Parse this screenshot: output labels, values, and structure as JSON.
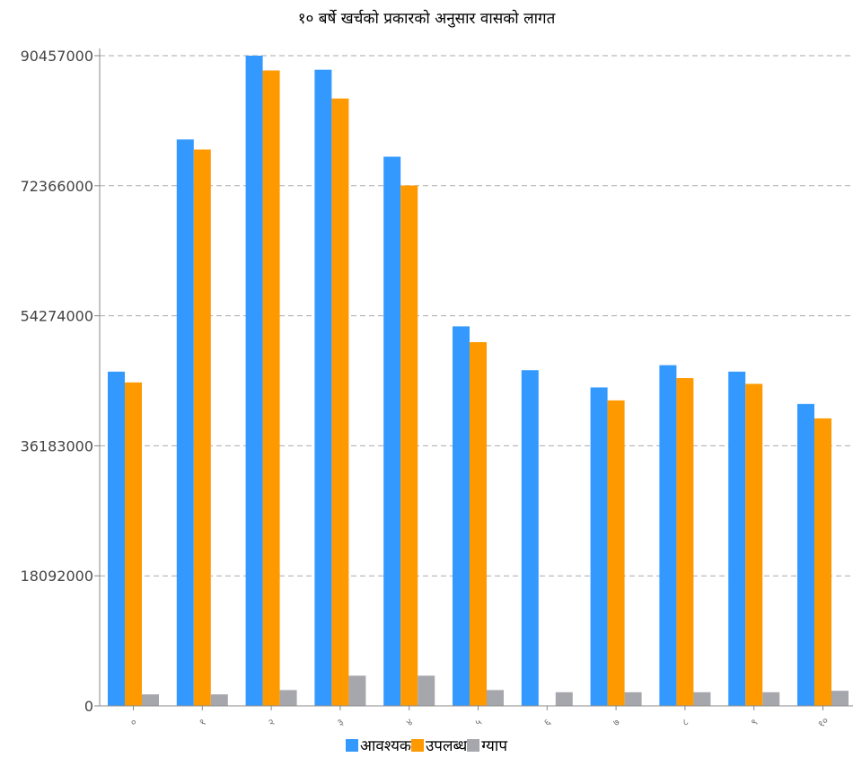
{
  "chart_data": {
    "type": "bar",
    "title": "१० बर्षे खर्चको प्रकारको अनुसार वासको लागत",
    "xlabel": "",
    "ylabel": "",
    "categories": [
      "०",
      "१",
      "२",
      "३",
      "४",
      "५",
      "६",
      "७",
      "८",
      "९",
      "१०"
    ],
    "yticks": [
      "0",
      "18092000",
      "36183000",
      "54274000",
      "72366000",
      "90457000"
    ],
    "ylim": [
      0,
      90457000
    ],
    "grid": true,
    "legend_position": "bottom",
    "series": [
      {
        "name": "आवश्यक",
        "color": "#3399ff",
        "values": [
          46500000,
          78800000,
          90457000,
          88500000,
          76400000,
          52800000,
          46700000,
          44300000,
          47400000,
          46500000,
          42000000
        ]
      },
      {
        "name": "उपलब्ध",
        "color": "#ff9900",
        "values": [
          45000000,
          77400000,
          88400000,
          84500000,
          72400000,
          50600000,
          0,
          42500000,
          45600000,
          44800000,
          40000000
        ]
      },
      {
        "name": "ग्याप",
        "color": "#a6a6ad",
        "values": [
          1600000,
          1600000,
          2200000,
          4200000,
          4200000,
          2200000,
          1900000,
          1900000,
          1900000,
          1900000,
          2100000
        ]
      }
    ]
  }
}
